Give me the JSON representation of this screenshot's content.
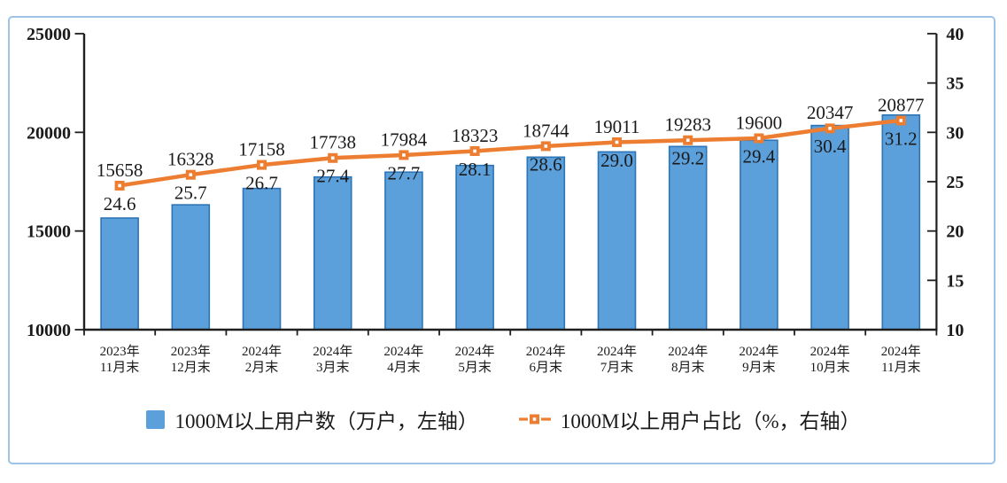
{
  "chart_data": {
    "type": "combo-bar-line",
    "categories": [
      {
        "line1": "2023年",
        "line2": "11月末"
      },
      {
        "line1": "2023年",
        "line2": "12月末"
      },
      {
        "line1": "2024年",
        "line2": "2月末"
      },
      {
        "line1": "2024年",
        "line2": "3月末"
      },
      {
        "line1": "2024年",
        "line2": "4月末"
      },
      {
        "line1": "2024年",
        "line2": "5月末"
      },
      {
        "line1": "2024年",
        "line2": "6月末"
      },
      {
        "line1": "2024年",
        "line2": "7月末"
      },
      {
        "line1": "2024年",
        "line2": "8月末"
      },
      {
        "line1": "2024年",
        "line2": "9月末"
      },
      {
        "line1": "2024年",
        "line2": "10月末"
      },
      {
        "line1": "2024年",
        "line2": "11月末"
      }
    ],
    "series": [
      {
        "name": "1000M以上用户数（万户，左轴）",
        "type": "bar",
        "axis": "left",
        "color": "#5B9FDB",
        "border_color": "#2E75B6",
        "values": [
          15658,
          16328,
          17158,
          17738,
          17984,
          18323,
          18744,
          19011,
          19283,
          19600,
          20347,
          20877
        ],
        "labels": [
          "15658",
          "16328",
          "17158",
          "17738",
          "17984",
          "18323",
          "18744",
          "19011",
          "19283",
          "19600",
          "20347",
          "20877"
        ]
      },
      {
        "name": "1000M以上用户占比（%，右轴）",
        "type": "line",
        "axis": "right",
        "color": "#ED7D31",
        "marker_inner_color": "#FFFFFF",
        "values": [
          24.6,
          25.7,
          26.7,
          27.4,
          27.7,
          28.1,
          28.6,
          29.0,
          29.2,
          29.4,
          30.4,
          31.2
        ],
        "labels": [
          "24.6",
          "25.7",
          "26.7",
          "27.4",
          "27.7",
          "28.1",
          "28.6",
          "29.0",
          "29.2",
          "29.4",
          "30.4",
          "31.2"
        ]
      }
    ],
    "left_axis": {
      "min": 10000,
      "max": 25000,
      "tick_labels": [
        "25000",
        "20000",
        "15000",
        "10000"
      ],
      "tick_values": [
        25000,
        20000,
        15000,
        10000
      ]
    },
    "right_axis": {
      "min": 10,
      "max": 40,
      "tick_labels": [
        "40",
        "35",
        "30",
        "25",
        "20",
        "15",
        "10"
      ],
      "tick_values": [
        40,
        35,
        30,
        25,
        20,
        15,
        10
      ]
    },
    "grid": "off",
    "legend_position": "bottom",
    "axis_color": "#1f1f1f",
    "frame_color": "#9DC3E6",
    "label_color": "#1a1a1a"
  }
}
